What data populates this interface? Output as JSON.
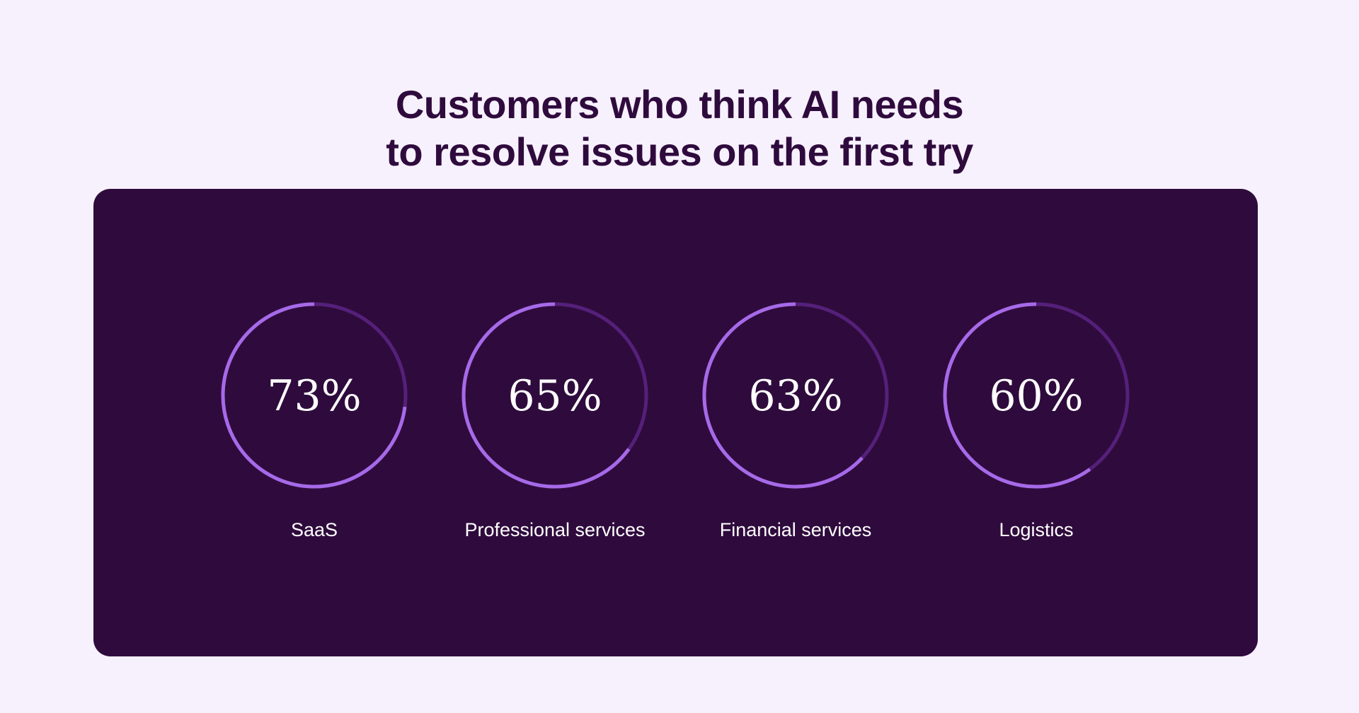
{
  "chart_data": {
    "type": "donut",
    "title_lines": [
      "Customers who think AI needs",
      "to resolve issues on the first try"
    ],
    "unit": "%",
    "max": 100,
    "categories": [
      "SaaS",
      "Professional services",
      "Financial services",
      "Logistics"
    ],
    "values": [
      73,
      65,
      63,
      60
    ],
    "value_labels": [
      "73%",
      "65%",
      "63%",
      "60%"
    ]
  },
  "colors": {
    "page_background": "#f7f1fd",
    "panel_background": "#2f0b3d",
    "title_text": "#2f0b3d",
    "ring_fill": "#a66ae8",
    "ring_track": "#55207a",
    "ring_text": "#ffffff"
  }
}
